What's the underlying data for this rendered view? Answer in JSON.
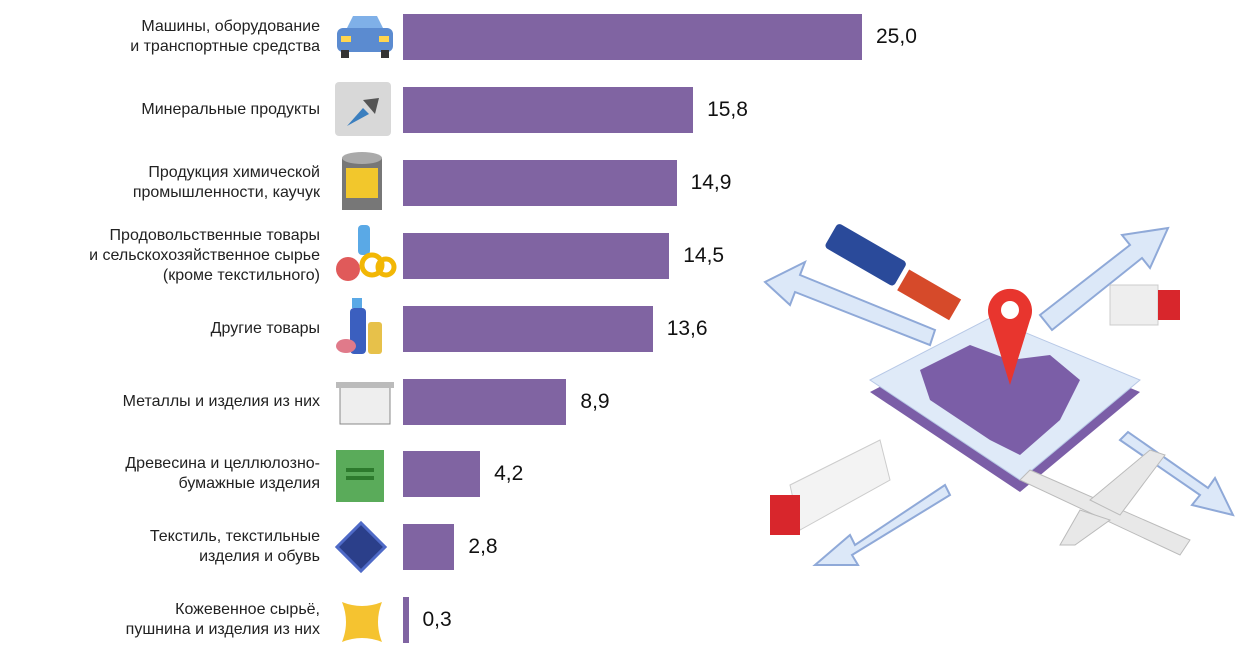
{
  "chart_data": {
    "type": "bar",
    "orientation": "horizontal",
    "color": "#8064a2",
    "categories": [
      "Машины, оборудование\nи транспортные средства",
      "Минеральные продукты",
      "Продукция химической\nпромышленности, каучук",
      "Продовольственные товары\nи сельскохозяйственное сырье\n(кроме текстильного)",
      "Другие товары",
      "Металлы и изделия из них",
      "Древесина и целлюлозно-\nбумажные изделия",
      "Текстиль, текстильные\nизделия и обувь",
      "Кожевенное сырьё,\nпушнина и изделия из них"
    ],
    "values": [
      25.0,
      15.8,
      14.9,
      14.5,
      13.6,
      8.9,
      4.2,
      2.8,
      0.3
    ],
    "value_labels": [
      "25,0",
      "15,8",
      "14,9",
      "14,5",
      "13,6",
      "8,9",
      "4,2",
      "2,8",
      "0,3"
    ]
  }
}
